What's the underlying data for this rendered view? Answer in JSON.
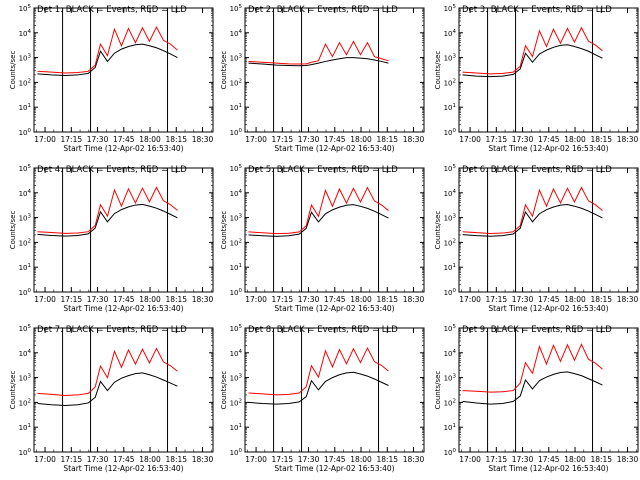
{
  "common": {
    "ylabel": "Counts/sec",
    "xlabel": "Start Time (12-Apr-02 16:53:40)",
    "x_tick_labels": [
      "17:00",
      "17:15",
      "17:30",
      "17:45",
      "18:00",
      "18:15",
      "18:30"
    ],
    "y_tick_labels": [
      "10^0",
      "10^1",
      "10^2",
      "10^3",
      "10^4",
      "10^5"
    ],
    "series_colors": {
      "events": "#000000",
      "lld": "#ff0000"
    }
  },
  "chart_data": [
    {
      "type": "line",
      "title": "Det 1: BLACK = Events, RED = LLD",
      "ylabel": "Counts/sec",
      "xlabel": "Start Time (12-Apr-02 16:53:40)",
      "xlim": [
        "16:53:40",
        "18:36"
      ],
      "ylim": [
        1,
        100000
      ],
      "yscale": "log",
      "markers": [
        "17:10",
        "17:26",
        "18:10"
      ],
      "x_minutes": [
        0,
        8,
        16,
        23,
        29,
        33,
        36,
        40,
        44,
        48,
        52,
        56,
        60,
        64,
        68,
        72,
        76,
        80
      ],
      "events": [
        {
          "name": "Events",
          "values": [
            220,
            200,
            190,
            200,
            230,
            400,
            1800,
            700,
            1500,
            2200,
            2800,
            3300,
            3500,
            3000,
            2500,
            1900,
            1400,
            1000
          ]
        },
        {
          "name": "LLD",
          "values": [
            280,
            260,
            240,
            250,
            280,
            500,
            3500,
            1200,
            14000,
            3000,
            15000,
            4000,
            16000,
            4500,
            17000,
            5000,
            3500,
            2000
          ]
        }
      ]
    },
    {
      "type": "line",
      "title": "Det 2: BLACK = Events, RED = LLD",
      "ylabel": "Counts/sec",
      "xlabel": "Start Time (12-Apr-02 16:53:40)",
      "xlim": [
        "16:53:40",
        "18:36"
      ],
      "ylim": [
        1,
        100000
      ],
      "yscale": "log",
      "markers": [
        "17:10",
        "17:26",
        "18:10"
      ],
      "x_minutes": [
        0,
        8,
        16,
        23,
        29,
        33,
        36,
        40,
        44,
        48,
        52,
        56,
        60,
        64,
        68,
        72,
        76,
        80
      ],
      "events": [
        {
          "name": "Events",
          "values": [
            600,
            550,
            500,
            480,
            470,
            480,
            520,
            600,
            700,
            800,
            900,
            1000,
            1000,
            950,
            900,
            800,
            700,
            600
          ]
        },
        {
          "name": "LLD",
          "values": [
            700,
            650,
            600,
            560,
            550,
            560,
            650,
            750,
            3500,
            1100,
            4000,
            1300,
            4500,
            1300,
            4000,
            1100,
            900,
            750
          ]
        }
      ]
    },
    {
      "type": "line",
      "title": "Det 3: BLACK = Events, RED = LLD",
      "ylabel": "Counts/sec",
      "xlabel": "Start Time (12-Apr-02 16:53:40)",
      "xlim": [
        "16:53:40",
        "18:36"
      ],
      "ylim": [
        1,
        100000
      ],
      "yscale": "log",
      "markers": [
        "17:10",
        "17:26",
        "18:10"
      ],
      "x_minutes": [
        0,
        8,
        16,
        23,
        29,
        33,
        36,
        40,
        44,
        48,
        52,
        56,
        60,
        64,
        68,
        72,
        76,
        80
      ],
      "events": [
        {
          "name": "Events",
          "values": [
            200,
            180,
            170,
            180,
            210,
            350,
            1500,
            650,
            1400,
            2000,
            2600,
            3100,
            3300,
            2800,
            2300,
            1800,
            1300,
            950
          ]
        },
        {
          "name": "LLD",
          "values": [
            260,
            240,
            220,
            230,
            260,
            450,
            3000,
            1100,
            12000,
            2800,
            14000,
            3800,
            15000,
            4200,
            16000,
            4600,
            3200,
            1900
          ]
        }
      ]
    },
    {
      "type": "line",
      "title": "Det 4: BLACK = Events, RED = LLD",
      "ylabel": "Counts/sec",
      "xlabel": "Start Time (12-Apr-02 16:53:40)",
      "xlim": [
        "16:53:40",
        "18:36"
      ],
      "ylim": [
        1,
        100000
      ],
      "yscale": "log",
      "markers": [
        "17:10",
        "17:26",
        "18:10"
      ],
      "x_minutes": [
        0,
        8,
        16,
        23,
        29,
        33,
        36,
        40,
        44,
        48,
        52,
        56,
        60,
        64,
        68,
        72,
        76,
        80
      ],
      "events": [
        {
          "name": "Events",
          "values": [
            210,
            190,
            180,
            190,
            220,
            380,
            1700,
            680,
            1450,
            2100,
            2700,
            3200,
            3400,
            2900,
            2400,
            1850,
            1350,
            980
          ]
        },
        {
          "name": "LLD",
          "values": [
            270,
            250,
            230,
            240,
            270,
            480,
            3300,
            1150,
            13000,
            2900,
            14500,
            3900,
            15500,
            4300,
            16500,
            4800,
            3300,
            1950
          ]
        }
      ]
    },
    {
      "type": "line",
      "title": "Det 5: BLACK = Events, RED = LLD",
      "ylabel": "Counts/sec",
      "xlabel": "Start Time (12-Apr-02 16:53:40)",
      "xlim": [
        "16:53:40",
        "18:36"
      ],
      "ylim": [
        1,
        100000
      ],
      "yscale": "log",
      "markers": [
        "17:10",
        "17:26",
        "18:10"
      ],
      "x_minutes": [
        0,
        8,
        16,
        23,
        29,
        33,
        36,
        40,
        44,
        48,
        52,
        56,
        60,
        64,
        68,
        72,
        76,
        80
      ],
      "events": [
        {
          "name": "Events",
          "values": [
            200,
            185,
            175,
            185,
            215,
            370,
            1650,
            670,
            1420,
            2050,
            2650,
            3150,
            3350,
            2850,
            2350,
            1820,
            1320,
            960
          ]
        },
        {
          "name": "LLD",
          "values": [
            265,
            245,
            225,
            235,
            265,
            470,
            3200,
            1120,
            12500,
            2850,
            14200,
            3850,
            15200,
            4250,
            16200,
            4700,
            3250,
            1920
          ]
        }
      ]
    },
    {
      "type": "line",
      "title": "Det 6: BLACK = Events, RED = LLD",
      "ylabel": "Counts/sec",
      "xlabel": "Start Time (12-Apr-02 16:53:40)",
      "xlim": [
        "16:53:40",
        "18:36"
      ],
      "ylim": [
        1,
        100000
      ],
      "yscale": "log",
      "markers": [
        "17:10",
        "17:26",
        "18:10"
      ],
      "x_minutes": [
        0,
        8,
        16,
        23,
        29,
        33,
        36,
        40,
        44,
        48,
        52,
        56,
        60,
        64,
        68,
        72,
        76,
        80
      ],
      "events": [
        {
          "name": "Events",
          "values": [
            205,
            188,
            178,
            188,
            218,
            375,
            1680,
            675,
            1430,
            2080,
            2680,
            3180,
            3380,
            2880,
            2380,
            1840,
            1340,
            970
          ]
        },
        {
          "name": "LLD",
          "values": [
            268,
            248,
            228,
            238,
            268,
            475,
            3250,
            1130,
            12800,
            2870,
            14300,
            3870,
            15300,
            4270,
            16300,
            4750,
            3280,
            1940
          ]
        }
      ]
    },
    {
      "type": "line",
      "title": "Det 7: BLACK = Events, RED = LLD",
      "ylabel": "Counts/sec",
      "xlabel": "Start Time (12-Apr-02 16:53:40)",
      "xlim": [
        "16:53:40",
        "18:36"
      ],
      "ylim": [
        1,
        100000
      ],
      "yscale": "log",
      "markers": [
        "17:10",
        "17:26",
        "18:10"
      ],
      "x_minutes": [
        0,
        8,
        16,
        23,
        29,
        33,
        36,
        40,
        44,
        48,
        52,
        56,
        60,
        64,
        68,
        72,
        76,
        80
      ],
      "events": [
        {
          "name": "Events",
          "values": [
            90,
            80,
            75,
            80,
            95,
            160,
            700,
            300,
            650,
            950,
            1200,
            1450,
            1550,
            1300,
            1050,
            800,
            600,
            450
          ]
        },
        {
          "name": "LLD",
          "values": [
            230,
            210,
            190,
            200,
            230,
            420,
            2900,
            1000,
            11500,
            2600,
            13000,
            3500,
            14000,
            3900,
            15000,
            4300,
            3000,
            1800
          ]
        }
      ]
    },
    {
      "type": "line",
      "title": "Det 8: BLACK = Events, RED = LLD",
      "ylabel": "Counts/sec",
      "xlabel": "Start Time (12-Apr-02 16:53:40)",
      "xlim": [
        "16:53:40",
        "18:36"
      ],
      "ylim": [
        1,
        100000
      ],
      "yscale": "log",
      "markers": [
        "17:10",
        "17:26",
        "18:10"
      ],
      "x_minutes": [
        0,
        8,
        16,
        23,
        29,
        33,
        36,
        40,
        44,
        48,
        52,
        56,
        60,
        64,
        68,
        72,
        76,
        80
      ],
      "events": [
        {
          "name": "Events",
          "values": [
            100,
            90,
            85,
            90,
            105,
            170,
            750,
            320,
            700,
            1000,
            1300,
            1550,
            1650,
            1400,
            1150,
            880,
            650,
            480
          ]
        },
        {
          "name": "LLD",
          "values": [
            240,
            220,
            200,
            210,
            240,
            430,
            3000,
            1050,
            12000,
            2700,
            13500,
            3600,
            14500,
            4000,
            15500,
            4400,
            3100,
            1850
          ]
        }
      ]
    },
    {
      "type": "line",
      "title": "Det 9: BLACK = Events, RED = LLD",
      "ylabel": "Counts/sec",
      "xlabel": "Start Time (12-Apr-02 16:53:40)",
      "xlim": [
        "16:53:40",
        "18:36"
      ],
      "ylim": [
        1,
        100000
      ],
      "yscale": "log",
      "markers": [
        "17:10",
        "17:26",
        "18:10"
      ],
      "x_minutes": [
        0,
        8,
        16,
        23,
        29,
        33,
        36,
        40,
        44,
        48,
        52,
        56,
        60,
        64,
        68,
        72,
        76,
        80
      ],
      "events": [
        {
          "name": "Events",
          "values": [
            110,
            95,
            85,
            90,
            110,
            180,
            800,
            350,
            750,
            1050,
            1350,
            1600,
            1700,
            1450,
            1200,
            900,
            680,
            500
          ]
        },
        {
          "name": "LLD",
          "values": [
            300,
            280,
            260,
            270,
            300,
            600,
            4000,
            1500,
            18000,
            3500,
            20000,
            4500,
            21000,
            5000,
            22000,
            5500,
            3800,
            2200
          ]
        }
      ]
    }
  ]
}
